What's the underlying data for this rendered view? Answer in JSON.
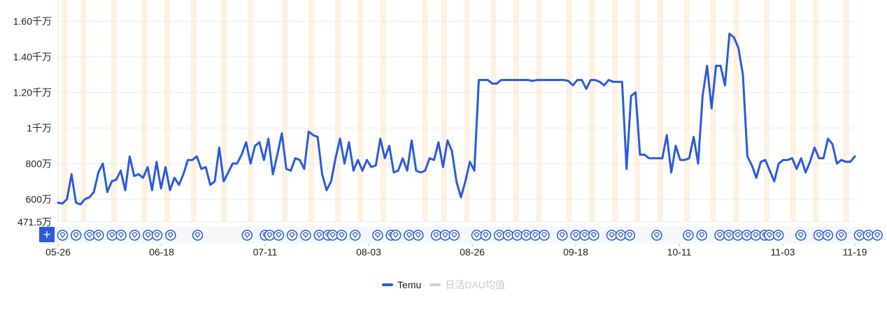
{
  "chart_data": {
    "type": "line",
    "ylim": [
      471.5,
      1720
    ],
    "y_tick_labels": [
      {
        "value": 1600,
        "label": "1.60千万"
      },
      {
        "value": 1400,
        "label": "1.40千万"
      },
      {
        "value": 1200,
        "label": "1.20千万"
      },
      {
        "value": 1000,
        "label": "1千万"
      },
      {
        "value": 800,
        "label": "800万"
      },
      {
        "value": 600,
        "label": "600万"
      },
      {
        "value": 471.5,
        "label": "471.5万"
      }
    ],
    "x_tick_labels": [
      "05-26",
      "06-18",
      "07-11",
      "08-03",
      "08-26",
      "09-18",
      "10-11",
      "11-03",
      "11-19"
    ],
    "x_tick_days": [
      0,
      23,
      46,
      69,
      92,
      115,
      138,
      161,
      177
    ],
    "grid": true,
    "series": [
      {
        "name": "Temu",
        "color": "#2b5bdc",
        "values": [
          580,
          575,
          600,
          740,
          580,
          570,
          600,
          610,
          640,
          750,
          800,
          640,
          700,
          710,
          760,
          650,
          840,
          730,
          740,
          720,
          780,
          650,
          810,
          660,
          780,
          650,
          720,
          680,
          740,
          820,
          820,
          840,
          770,
          780,
          680,
          700,
          890,
          700,
          750,
          800,
          800,
          850,
          920,
          800,
          900,
          920,
          820,
          940,
          740,
          850,
          970,
          770,
          760,
          830,
          820,
          770,
          980,
          960,
          950,
          740,
          650,
          700,
          830,
          940,
          800,
          920,
          760,
          820,
          760,
          820,
          780,
          790,
          940,
          830,
          900,
          750,
          760,
          830,
          760,
          930,
          760,
          750,
          760,
          830,
          820,
          920,
          780,
          930,
          870,
          700,
          610,
          700,
          810,
          760,
          1270,
          1270,
          1270,
          1250,
          1250,
          1270,
          1270,
          1270,
          1270,
          1270,
          1270,
          1270,
          1265,
          1270,
          1270,
          1270,
          1270,
          1270,
          1270,
          1270,
          1265,
          1240,
          1270,
          1270,
          1220,
          1270,
          1270,
          1260,
          1240,
          1270,
          1260,
          1260,
          1260,
          770,
          1180,
          1200,
          850,
          850,
          830,
          830,
          830,
          830,
          960,
          750,
          900,
          820,
          820,
          830,
          950,
          800,
          1180,
          1350,
          1110,
          1350,
          1350,
          1240,
          1530,
          1510,
          1450,
          1300,
          840,
          790,
          720,
          810,
          820,
          760,
          700,
          800,
          820,
          820,
          830,
          770,
          830,
          750,
          810,
          890,
          830,
          830,
          940,
          910,
          800,
          820,
          810,
          810,
          840
        ]
      },
      {
        "name": "日活DAU均值",
        "color": "#cfcfcf",
        "values": []
      }
    ],
    "event_marker_days": [
      1,
      4,
      7,
      9,
      12,
      14,
      17,
      20,
      22,
      25,
      31,
      42,
      46,
      47,
      49,
      52,
      55,
      58,
      60,
      61,
      63,
      66,
      71,
      74,
      75,
      78,
      80,
      84,
      86,
      88,
      93,
      95,
      98,
      100,
      102,
      104,
      106,
      108,
      112,
      115,
      117,
      119,
      123,
      125,
      127,
      133,
      140,
      143,
      147,
      149,
      151,
      153,
      155,
      157,
      158,
      160,
      165,
      169,
      171,
      174,
      178,
      180,
      182
    ],
    "highlight_band_days": [
      1,
      6,
      14,
      22,
      28,
      35,
      43,
      50,
      59,
      66,
      73,
      79,
      85,
      96,
      101,
      107,
      114,
      120,
      126,
      134,
      140,
      146,
      152,
      158,
      165,
      172,
      178,
      186,
      193,
      199,
      207
    ]
  },
  "toolbar": {
    "add_label": "+"
  }
}
